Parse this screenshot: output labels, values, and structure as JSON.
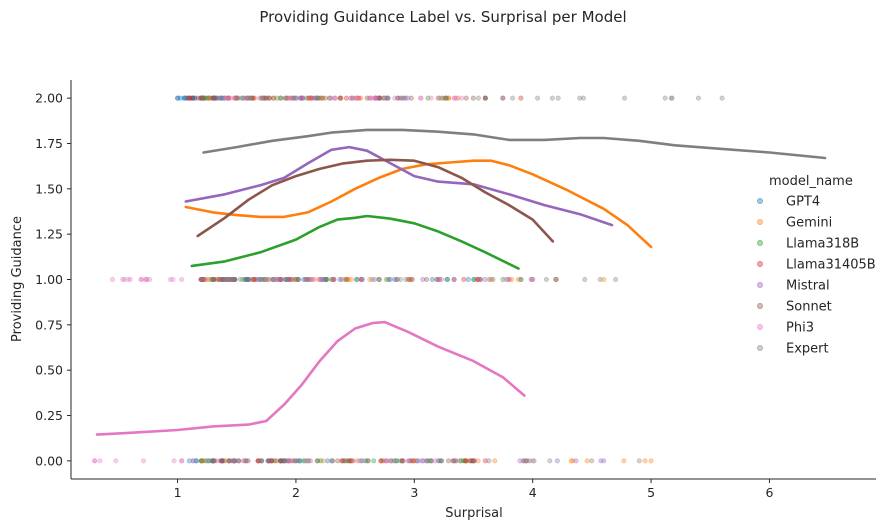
{
  "chart_data": {
    "type": "scatter",
    "title": "Providing Guidance Label vs. Surprisal per Model",
    "xlabel": "Surprisal",
    "ylabel": "Providing Guidance",
    "xlim": [
      0.1,
      6.9
    ],
    "ylim": [
      -0.1,
      2.1
    ],
    "xticks": [
      1,
      2,
      3,
      4,
      5,
      6
    ],
    "yticks": [
      0.0,
      0.25,
      0.5,
      0.75,
      1.0,
      1.25,
      1.5,
      1.75,
      2.0
    ],
    "ytick_labels": [
      "0.00",
      "0.25",
      "0.50",
      "0.75",
      "1.00",
      "1.25",
      "1.50",
      "1.75",
      "2.00"
    ],
    "legend": {
      "title": "model_name",
      "placement": "center-right"
    },
    "grid": false,
    "series": [
      {
        "name": "GPT4",
        "color": "#1f77b4",
        "points_y2_range": [
          1.0,
          1.4
        ],
        "points_y1_range": [
          1.3,
          3.5
        ],
        "points_y0_range": [
          1.1,
          3.2
        ],
        "trend": []
      },
      {
        "name": "Gemini",
        "color": "#ff7f0e",
        "points_y2_range": [
          1.2,
          3.6
        ],
        "points_y1_range": [
          1.2,
          4.6
        ],
        "points_y0_range": [
          1.2,
          5.0
        ],
        "trend": [
          [
            1.07,
            1.4
          ],
          [
            1.3,
            1.37
          ],
          [
            1.5,
            1.355
          ],
          [
            1.7,
            1.345
          ],
          [
            1.9,
            1.345
          ],
          [
            2.1,
            1.37
          ],
          [
            2.3,
            1.43
          ],
          [
            2.5,
            1.5
          ],
          [
            2.7,
            1.56
          ],
          [
            2.9,
            1.61
          ],
          [
            3.1,
            1.635
          ],
          [
            3.3,
            1.645
          ],
          [
            3.5,
            1.655
          ],
          [
            3.65,
            1.655
          ],
          [
            3.8,
            1.63
          ],
          [
            4.0,
            1.58
          ],
          [
            4.3,
            1.49
          ],
          [
            4.6,
            1.39
          ],
          [
            4.8,
            1.3
          ],
          [
            5.0,
            1.18
          ]
        ]
      },
      {
        "name": "Llama318B",
        "color": "#2ca02c",
        "points_y2_range": [
          1.2,
          3.6
        ],
        "points_y1_range": [
          1.2,
          3.9
        ],
        "points_y0_range": [
          1.2,
          3.5
        ],
        "trend": [
          [
            1.12,
            1.075
          ],
          [
            1.4,
            1.1
          ],
          [
            1.7,
            1.15
          ],
          [
            2.0,
            1.22
          ],
          [
            2.2,
            1.29
          ],
          [
            2.35,
            1.33
          ],
          [
            2.5,
            1.34
          ],
          [
            2.6,
            1.35
          ],
          [
            2.8,
            1.335
          ],
          [
            3.0,
            1.31
          ],
          [
            3.2,
            1.265
          ],
          [
            3.4,
            1.21
          ],
          [
            3.6,
            1.15
          ],
          [
            3.88,
            1.06
          ]
        ]
      },
      {
        "name": "Llama31405B",
        "color": "#d62728",
        "points_y2_range": [
          1.1,
          3.9
        ],
        "points_y1_range": [
          1.3,
          3.8
        ],
        "points_y0_range": [
          1.3,
          3.6
        ],
        "trend": []
      },
      {
        "name": "Mistral",
        "color": "#9467bd",
        "points_y2_range": [
          1.3,
          3.6
        ],
        "points_y1_range": [
          1.3,
          4.0
        ],
        "points_y0_range": [
          1.3,
          4.6
        ],
        "trend": [
          [
            1.07,
            1.43
          ],
          [
            1.4,
            1.47
          ],
          [
            1.7,
            1.52
          ],
          [
            1.9,
            1.56
          ],
          [
            2.1,
            1.64
          ],
          [
            2.3,
            1.715
          ],
          [
            2.45,
            1.73
          ],
          [
            2.6,
            1.71
          ],
          [
            2.8,
            1.64
          ],
          [
            3.0,
            1.57
          ],
          [
            3.2,
            1.54
          ],
          [
            3.5,
            1.525
          ],
          [
            3.8,
            1.47
          ],
          [
            4.1,
            1.41
          ],
          [
            4.4,
            1.36
          ],
          [
            4.67,
            1.3
          ]
        ]
      },
      {
        "name": "Sonnet",
        "color": "#8c564b",
        "points_y2_range": [
          1.3,
          3.6
        ],
        "points_y1_range": [
          1.2,
          4.2
        ],
        "points_y0_range": [
          1.3,
          3.5
        ],
        "trend": [
          [
            1.17,
            1.24
          ],
          [
            1.4,
            1.34
          ],
          [
            1.6,
            1.44
          ],
          [
            1.8,
            1.52
          ],
          [
            2.0,
            1.57
          ],
          [
            2.2,
            1.61
          ],
          [
            2.4,
            1.64
          ],
          [
            2.6,
            1.655
          ],
          [
            2.8,
            1.66
          ],
          [
            3.0,
            1.655
          ],
          [
            3.2,
            1.62
          ],
          [
            3.4,
            1.56
          ],
          [
            3.6,
            1.48
          ],
          [
            3.8,
            1.41
          ],
          [
            4.0,
            1.33
          ],
          [
            4.17,
            1.21
          ]
        ]
      },
      {
        "name": "Phi3",
        "color": "#e377c2",
        "points_y2_range": [
          1.4,
          3.4
        ],
        "points_y1_range": [
          0.45,
          4.0
        ],
        "points_y0_range": [
          0.3,
          4.0
        ],
        "trend": [
          [
            0.32,
            0.145
          ],
          [
            0.6,
            0.155
          ],
          [
            1.0,
            0.17
          ],
          [
            1.3,
            0.19
          ],
          [
            1.6,
            0.2
          ],
          [
            1.75,
            0.22
          ],
          [
            1.9,
            0.31
          ],
          [
            2.05,
            0.42
          ],
          [
            2.2,
            0.55
          ],
          [
            2.35,
            0.66
          ],
          [
            2.5,
            0.73
          ],
          [
            2.65,
            0.76
          ],
          [
            2.75,
            0.765
          ],
          [
            2.95,
            0.71
          ],
          [
            3.2,
            0.63
          ],
          [
            3.5,
            0.55
          ],
          [
            3.75,
            0.46
          ],
          [
            3.93,
            0.36
          ]
        ]
      },
      {
        "name": "Expert",
        "color": "#7f7f7f",
        "points_y2_range": [
          1.2,
          5.6
        ],
        "points_y1_range": [
          1.3,
          4.7
        ],
        "points_y0_range": [
          1.3,
          4.9
        ],
        "trend": [
          [
            1.22,
            1.7
          ],
          [
            1.5,
            1.73
          ],
          [
            1.8,
            1.765
          ],
          [
            2.1,
            1.79
          ],
          [
            2.3,
            1.81
          ],
          [
            2.6,
            1.825
          ],
          [
            2.9,
            1.825
          ],
          [
            3.2,
            1.815
          ],
          [
            3.5,
            1.8
          ],
          [
            3.8,
            1.77
          ],
          [
            4.1,
            1.77
          ],
          [
            4.4,
            1.78
          ],
          [
            4.6,
            1.78
          ],
          [
            4.9,
            1.765
          ],
          [
            5.2,
            1.74
          ],
          [
            5.6,
            1.72
          ],
          [
            6.0,
            1.7
          ],
          [
            6.47,
            1.67
          ]
        ]
      }
    ],
    "notes_on_points": "Scatter markers are jittered semi-transparent dots at y = 0, 1 and 2 spanning the listed surprisal ranges for each model."
  }
}
